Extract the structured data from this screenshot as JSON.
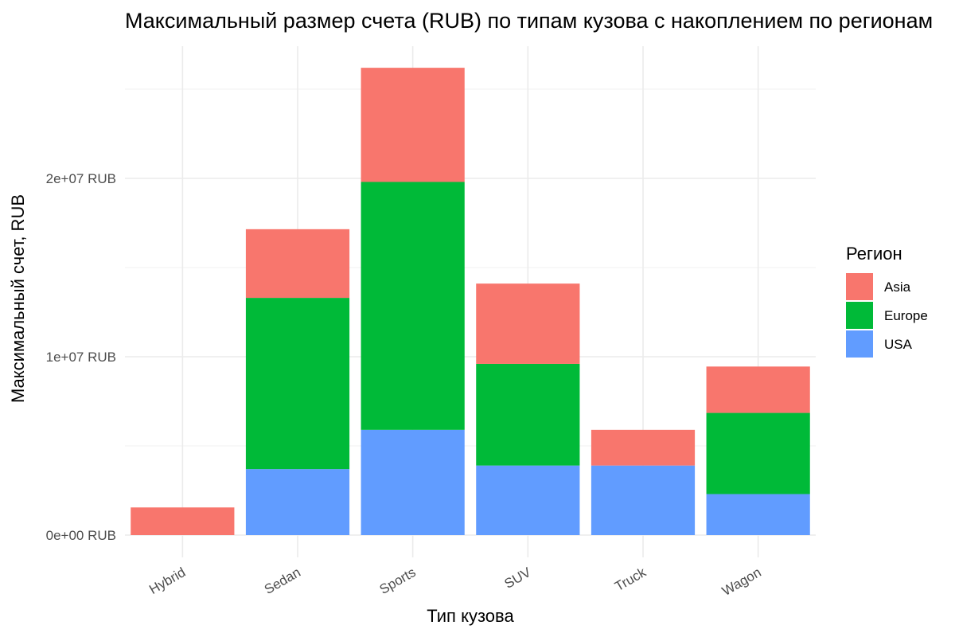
{
  "chart_data": {
    "type": "bar",
    "stacked": true,
    "title": "Максимальный размер счета (RUB) по типам кузова с накоплением по регионам",
    "xlabel": "Тип кузова",
    "ylabel": "Максимальный счет, RUB",
    "categories": [
      "Hybrid",
      "Sedan",
      "Sports",
      "SUV",
      "Truck",
      "Wagon"
    ],
    "series": [
      {
        "name": "USA",
        "color": "#619CFF",
        "values": [
          0,
          3700000,
          5900000,
          3900000,
          3900000,
          2300000
        ]
      },
      {
        "name": "Europe",
        "color": "#00BA38",
        "values": [
          0,
          9600000,
          13900000,
          5700000,
          0,
          4550000
        ]
      },
      {
        "name": "Asia",
        "color": "#F8766D",
        "values": [
          1550000,
          3850000,
          6400000,
          4500000,
          2000000,
          2600000
        ]
      }
    ],
    "y_ticks": [
      0,
      10000000,
      20000000
    ],
    "y_tick_labels": [
      "0e+00 RUB",
      "1e+07 RUB",
      "2e+07 RUB"
    ],
    "ylim": [
      -1300000,
      28000000
    ],
    "grid": true,
    "legend": {
      "title": "Регион",
      "placement": "right",
      "entries": [
        {
          "label": "Asia",
          "color": "#F8766D"
        },
        {
          "label": "Europe",
          "color": "#00BA38"
        },
        {
          "label": "USA",
          "color": "#619CFF"
        }
      ]
    }
  }
}
